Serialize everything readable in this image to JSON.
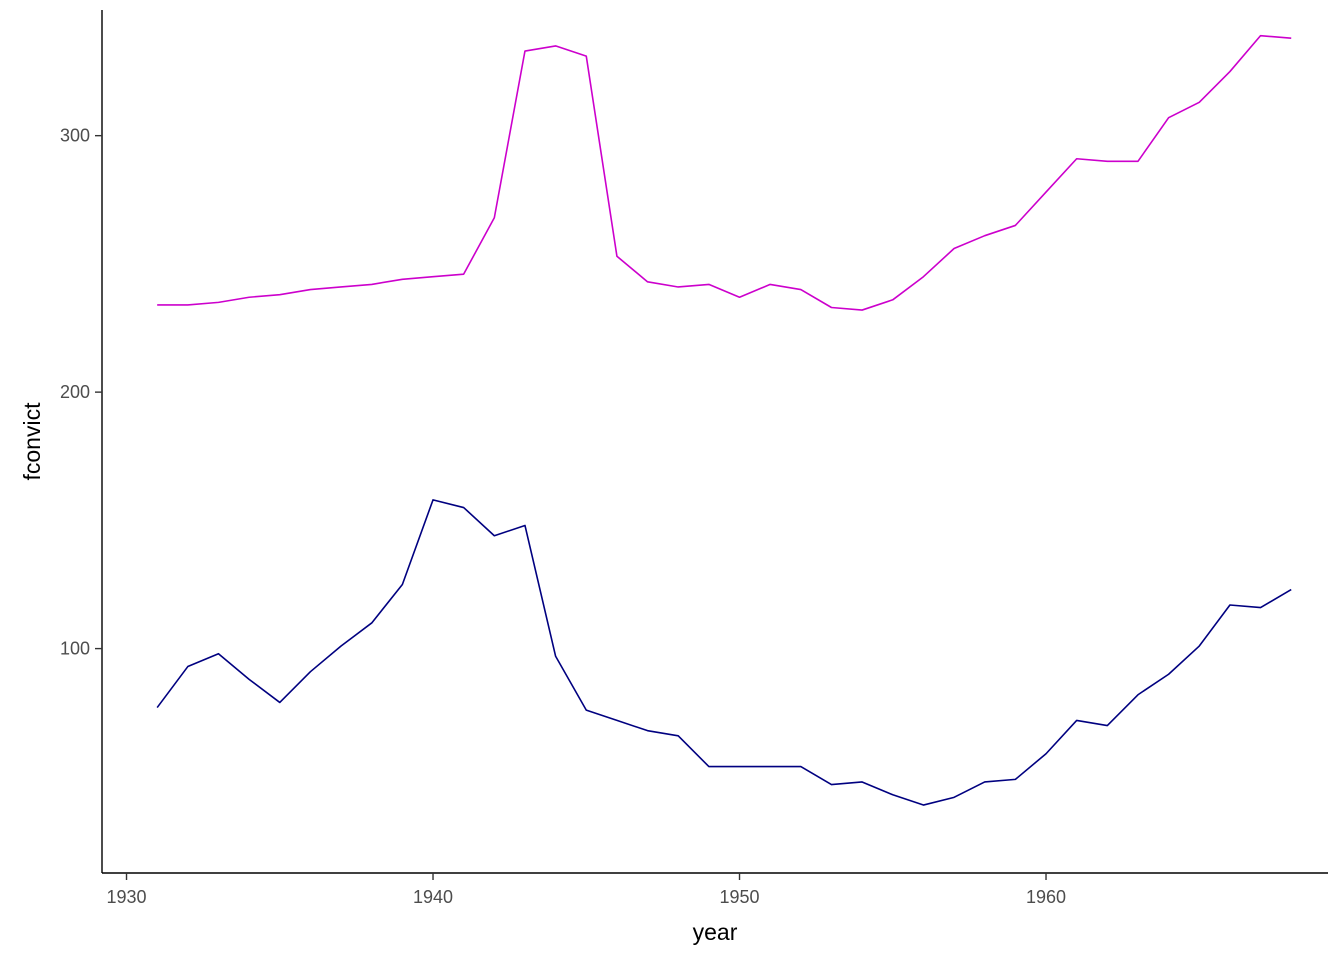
{
  "chart_data": {
    "type": "line",
    "xlabel": "year",
    "ylabel": "fconvict",
    "xlim": [
      1929.2,
      1969.2
    ],
    "ylim": [
      12.5,
      349
    ],
    "x_ticks": [
      1930,
      1940,
      1950,
      1960
    ],
    "y_ticks": [
      100,
      200,
      300
    ],
    "grid": false,
    "legend": "none",
    "series": [
      {
        "color": "#CC00CC",
        "x": [
          1931,
          1932,
          1933,
          1934,
          1935,
          1936,
          1937,
          1938,
          1939,
          1940,
          1941,
          1942,
          1943,
          1944,
          1945,
          1946,
          1947,
          1948,
          1949,
          1950,
          1951,
          1952,
          1953,
          1954,
          1955,
          1956,
          1957,
          1958,
          1959,
          1960,
          1961,
          1962,
          1963,
          1964,
          1965,
          1966,
          1967,
          1968
        ],
        "y": [
          234,
          234,
          235,
          237,
          238,
          240,
          241,
          242,
          244,
          245,
          246,
          268,
          333,
          335,
          331,
          253,
          243,
          241,
          242,
          237,
          242,
          240,
          233,
          232,
          236,
          245,
          256,
          261,
          265,
          278,
          291,
          290,
          290,
          307,
          313,
          325,
          339,
          338
        ]
      },
      {
        "color": "#000080",
        "x": [
          1931,
          1932,
          1933,
          1934,
          1935,
          1936,
          1937,
          1938,
          1939,
          1940,
          1941,
          1942,
          1943,
          1944,
          1945,
          1946,
          1947,
          1948,
          1949,
          1950,
          1951,
          1952,
          1953,
          1954,
          1955,
          1956,
          1957,
          1958,
          1959,
          1960,
          1961,
          1962,
          1963,
          1964,
          1965,
          1966,
          1967,
          1968
        ],
        "y": [
          77,
          93,
          98,
          88,
          79,
          91,
          101,
          110,
          125,
          158,
          155,
          144,
          148,
          97,
          76,
          72,
          68,
          66,
          54,
          54,
          54,
          54,
          47,
          48,
          43,
          39,
          42,
          48,
          49,
          59,
          72,
          70,
          82,
          90,
          101,
          117,
          116,
          123
        ]
      }
    ]
  }
}
